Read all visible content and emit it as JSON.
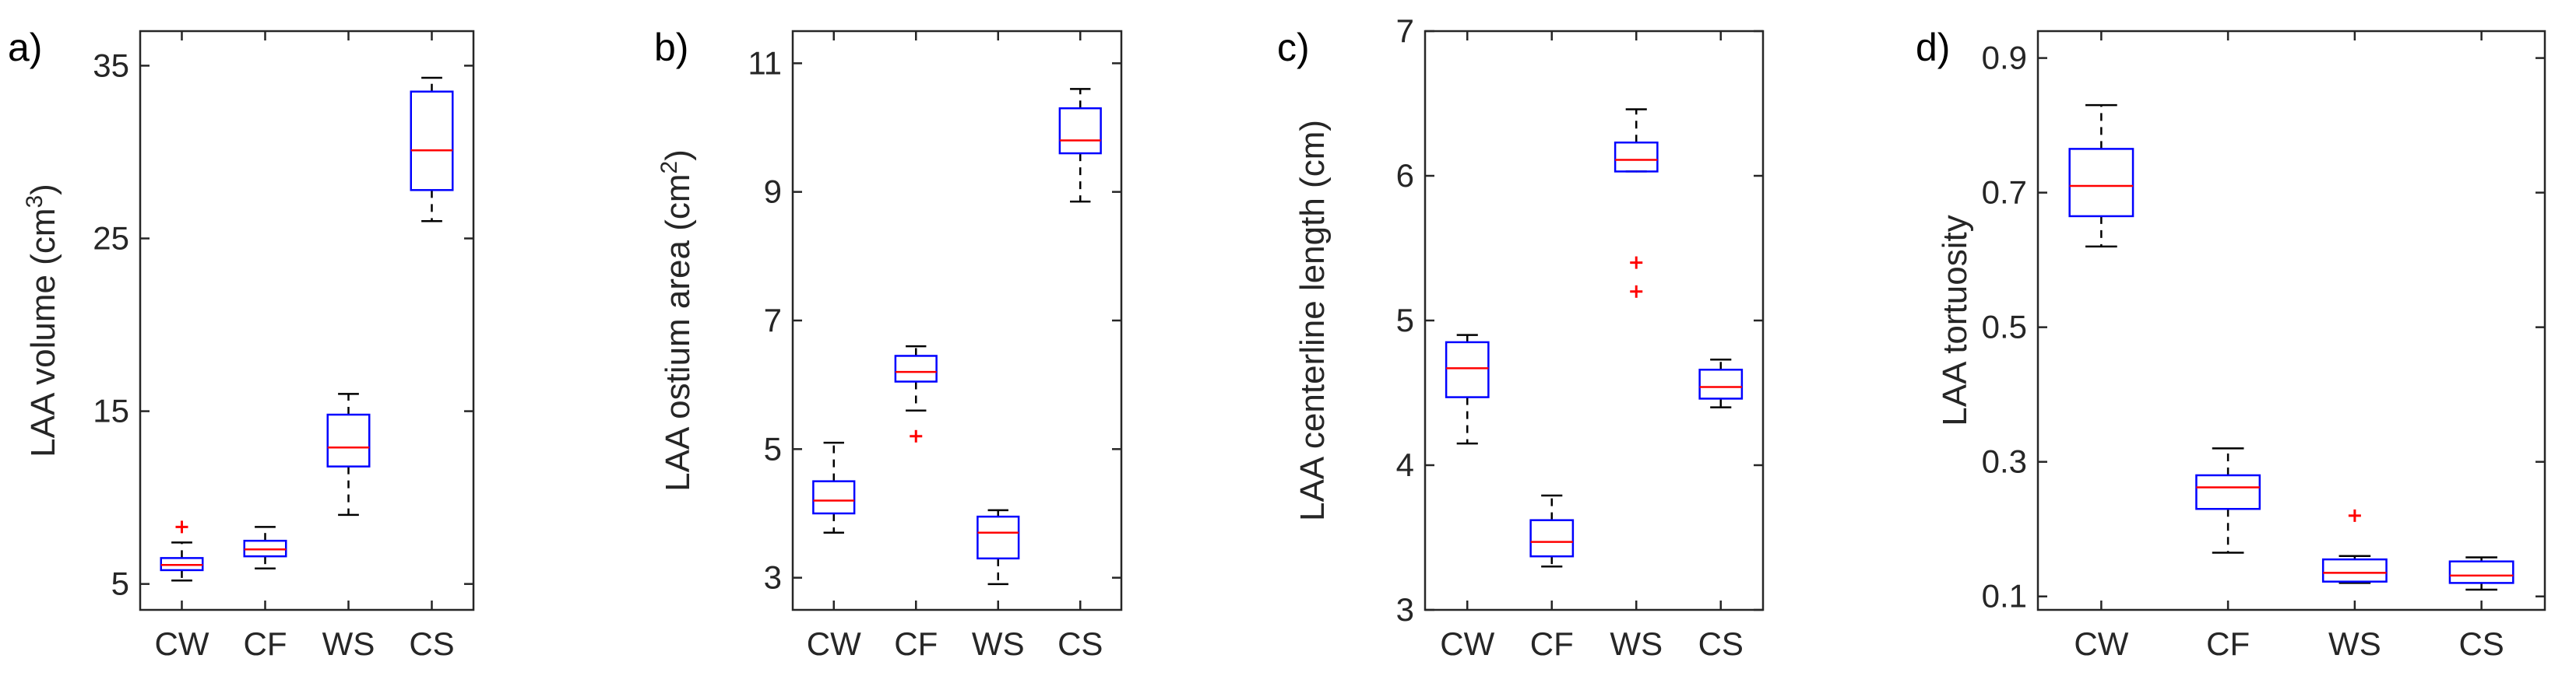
{
  "chart_data": [
    {
      "type": "box",
      "panel": "a)",
      "ylabel": "LAA volume (cm",
      "ylabel_sup": "3",
      "ylabel_end": ")",
      "categories": [
        "CW",
        "CF",
        "WS",
        "CS"
      ],
      "ylim": [
        3.5,
        37
      ],
      "yticks": [
        "5",
        "15",
        "25",
        "35"
      ],
      "boxes": [
        {
          "category": "CW",
          "whisker_low": 5.2,
          "q1": 5.8,
          "median": 6.1,
          "q3": 6.5,
          "whisker_high": 7.4,
          "outliers": [
            8.3
          ]
        },
        {
          "category": "CF",
          "whisker_low": 5.9,
          "q1": 6.6,
          "median": 7.0,
          "q3": 7.5,
          "whisker_high": 8.3,
          "outliers": []
        },
        {
          "category": "WS",
          "whisker_low": 9.0,
          "q1": 11.8,
          "median": 12.9,
          "q3": 14.8,
          "whisker_high": 16.0,
          "outliers": []
        },
        {
          "category": "CS",
          "whisker_low": 26.0,
          "q1": 27.8,
          "median": 30.1,
          "q3": 33.5,
          "whisker_high": 34.3,
          "outliers": []
        }
      ]
    },
    {
      "type": "box",
      "panel": "b)",
      "ylabel": "LAA ostium area (cm",
      "ylabel_sup": "2",
      "ylabel_end": ")",
      "categories": [
        "CW",
        "CF",
        "WS",
        "CS"
      ],
      "ylim": [
        2.5,
        11.5
      ],
      "yticks": [
        "3",
        "5",
        "7",
        "9",
        "11"
      ],
      "boxes": [
        {
          "category": "CW",
          "whisker_low": 3.7,
          "q1": 4.0,
          "median": 4.2,
          "q3": 4.5,
          "whisker_high": 5.1,
          "outliers": []
        },
        {
          "category": "CF",
          "whisker_low": 5.6,
          "q1": 6.05,
          "median": 6.2,
          "q3": 6.45,
          "whisker_high": 6.6,
          "outliers": [
            5.2
          ]
        },
        {
          "category": "WS",
          "whisker_low": 2.9,
          "q1": 3.3,
          "median": 3.7,
          "q3": 3.95,
          "whisker_high": 4.05,
          "outliers": []
        },
        {
          "category": "CS",
          "whisker_low": 8.85,
          "q1": 9.6,
          "median": 9.8,
          "q3": 10.3,
          "whisker_high": 10.6,
          "outliers": []
        }
      ]
    },
    {
      "type": "box",
      "panel": "c)",
      "ylabel": "LAA centerline length (cm)",
      "ylabel_sup": "",
      "ylabel_end": "",
      "categories": [
        "CW",
        "CF",
        "WS",
        "CS"
      ],
      "ylim": [
        3,
        7
      ],
      "yticks": [
        "3",
        "4",
        "5",
        "6",
        "7"
      ],
      "boxes": [
        {
          "category": "CW",
          "whisker_low": 4.15,
          "q1": 4.47,
          "median": 4.67,
          "q3": 4.85,
          "whisker_high": 4.9,
          "outliers": []
        },
        {
          "category": "CF",
          "whisker_low": 3.3,
          "q1": 3.37,
          "median": 3.47,
          "q3": 3.62,
          "whisker_high": 3.79,
          "outliers": []
        },
        {
          "category": "WS",
          "whisker_low": 6.03,
          "q1": 6.03,
          "median": 6.11,
          "q3": 6.23,
          "whisker_high": 6.46,
          "outliers": [
            5.4,
            5.2
          ]
        },
        {
          "category": "CS",
          "whisker_low": 4.4,
          "q1": 4.46,
          "median": 4.54,
          "q3": 4.66,
          "whisker_high": 4.73,
          "outliers": []
        }
      ]
    },
    {
      "type": "box",
      "panel": "d)",
      "ylabel": "LAA tortuosity",
      "ylabel_sup": "",
      "ylabel_end": "",
      "categories": [
        "CW",
        "CF",
        "WS",
        "CS"
      ],
      "ylim": [
        0.08,
        0.94
      ],
      "yticks": [
        "0.1",
        "0.3",
        "0.5",
        "0.7",
        "0.9"
      ],
      "boxes": [
        {
          "category": "CW",
          "whisker_low": 0.62,
          "q1": 0.665,
          "median": 0.71,
          "q3": 0.765,
          "whisker_high": 0.83,
          "outliers": []
        },
        {
          "category": "CF",
          "whisker_low": 0.165,
          "q1": 0.23,
          "median": 0.262,
          "q3": 0.28,
          "whisker_high": 0.32,
          "outliers": []
        },
        {
          "category": "WS",
          "whisker_low": 0.12,
          "q1": 0.122,
          "median": 0.135,
          "q3": 0.155,
          "whisker_high": 0.16,
          "outliers": [
            0.22
          ]
        },
        {
          "category": "CS",
          "whisker_low": 0.11,
          "q1": 0.12,
          "median": 0.131,
          "q3": 0.152,
          "whisker_high": 0.158,
          "outliers": []
        }
      ]
    }
  ],
  "colors": {
    "box": "#0000ff",
    "median": "#ff0000",
    "outlier": "#ff0000",
    "whisker": "#000000",
    "axis": "#262626"
  }
}
